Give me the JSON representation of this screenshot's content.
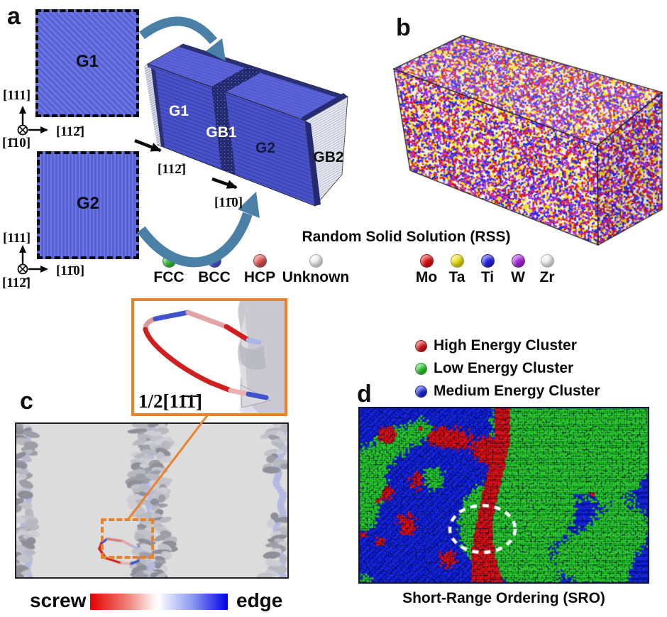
{
  "panel_a": {
    "label": "a",
    "grain1": {
      "name": "G1",
      "axis_up": "[111]",
      "axis_right": "[112̄]",
      "axis_out": "[1̄10]"
    },
    "grain2": {
      "name": "G2",
      "axis_up": "[111]",
      "axis_right": "[11̄0]",
      "axis_out": "[112̄]"
    },
    "box": {
      "g1": "G1",
      "gb1": "GB1",
      "g2": "G2",
      "gb2": "GB2",
      "arrow1": "[112̄]",
      "arrow2": "[11̄0]"
    },
    "structure_legend": [
      {
        "label": "FCC",
        "color": "#3fc43f"
      },
      {
        "label": "BCC",
        "color": "#5057d8"
      },
      {
        "label": "HCP",
        "color": "#e05353"
      },
      {
        "label": "Unknown",
        "color": "#f2f2f2"
      }
    ]
  },
  "panel_b": {
    "label": "b",
    "title": "Random Solid Solution (RSS)",
    "element_legend": [
      {
        "label": "Mo",
        "color": "#e01212"
      },
      {
        "label": "Ta",
        "color": "#efe312"
      },
      {
        "label": "Ti",
        "color": "#2323e6"
      },
      {
        "label": "W",
        "color": "#a928de"
      },
      {
        "label": "Zr",
        "color": "#f4f4f4"
      }
    ]
  },
  "panel_c": {
    "label": "c",
    "inset_label": "1/2[11̄1̄]",
    "colorbar": {
      "left_label": "screw",
      "right_label": "edge",
      "left_color": "#e60000",
      "right_color": "#0000e6"
    }
  },
  "panel_d": {
    "label": "d",
    "title": "Short-Range Ordering (SRO)",
    "cluster_legend": [
      {
        "label": "High Energy Cluster",
        "color": "#dd1616"
      },
      {
        "label": "Low Energy Cluster",
        "color": "#2ecc2e"
      },
      {
        "label": "Medium Energy Cluster",
        "color": "#1a28e0"
      }
    ]
  }
}
